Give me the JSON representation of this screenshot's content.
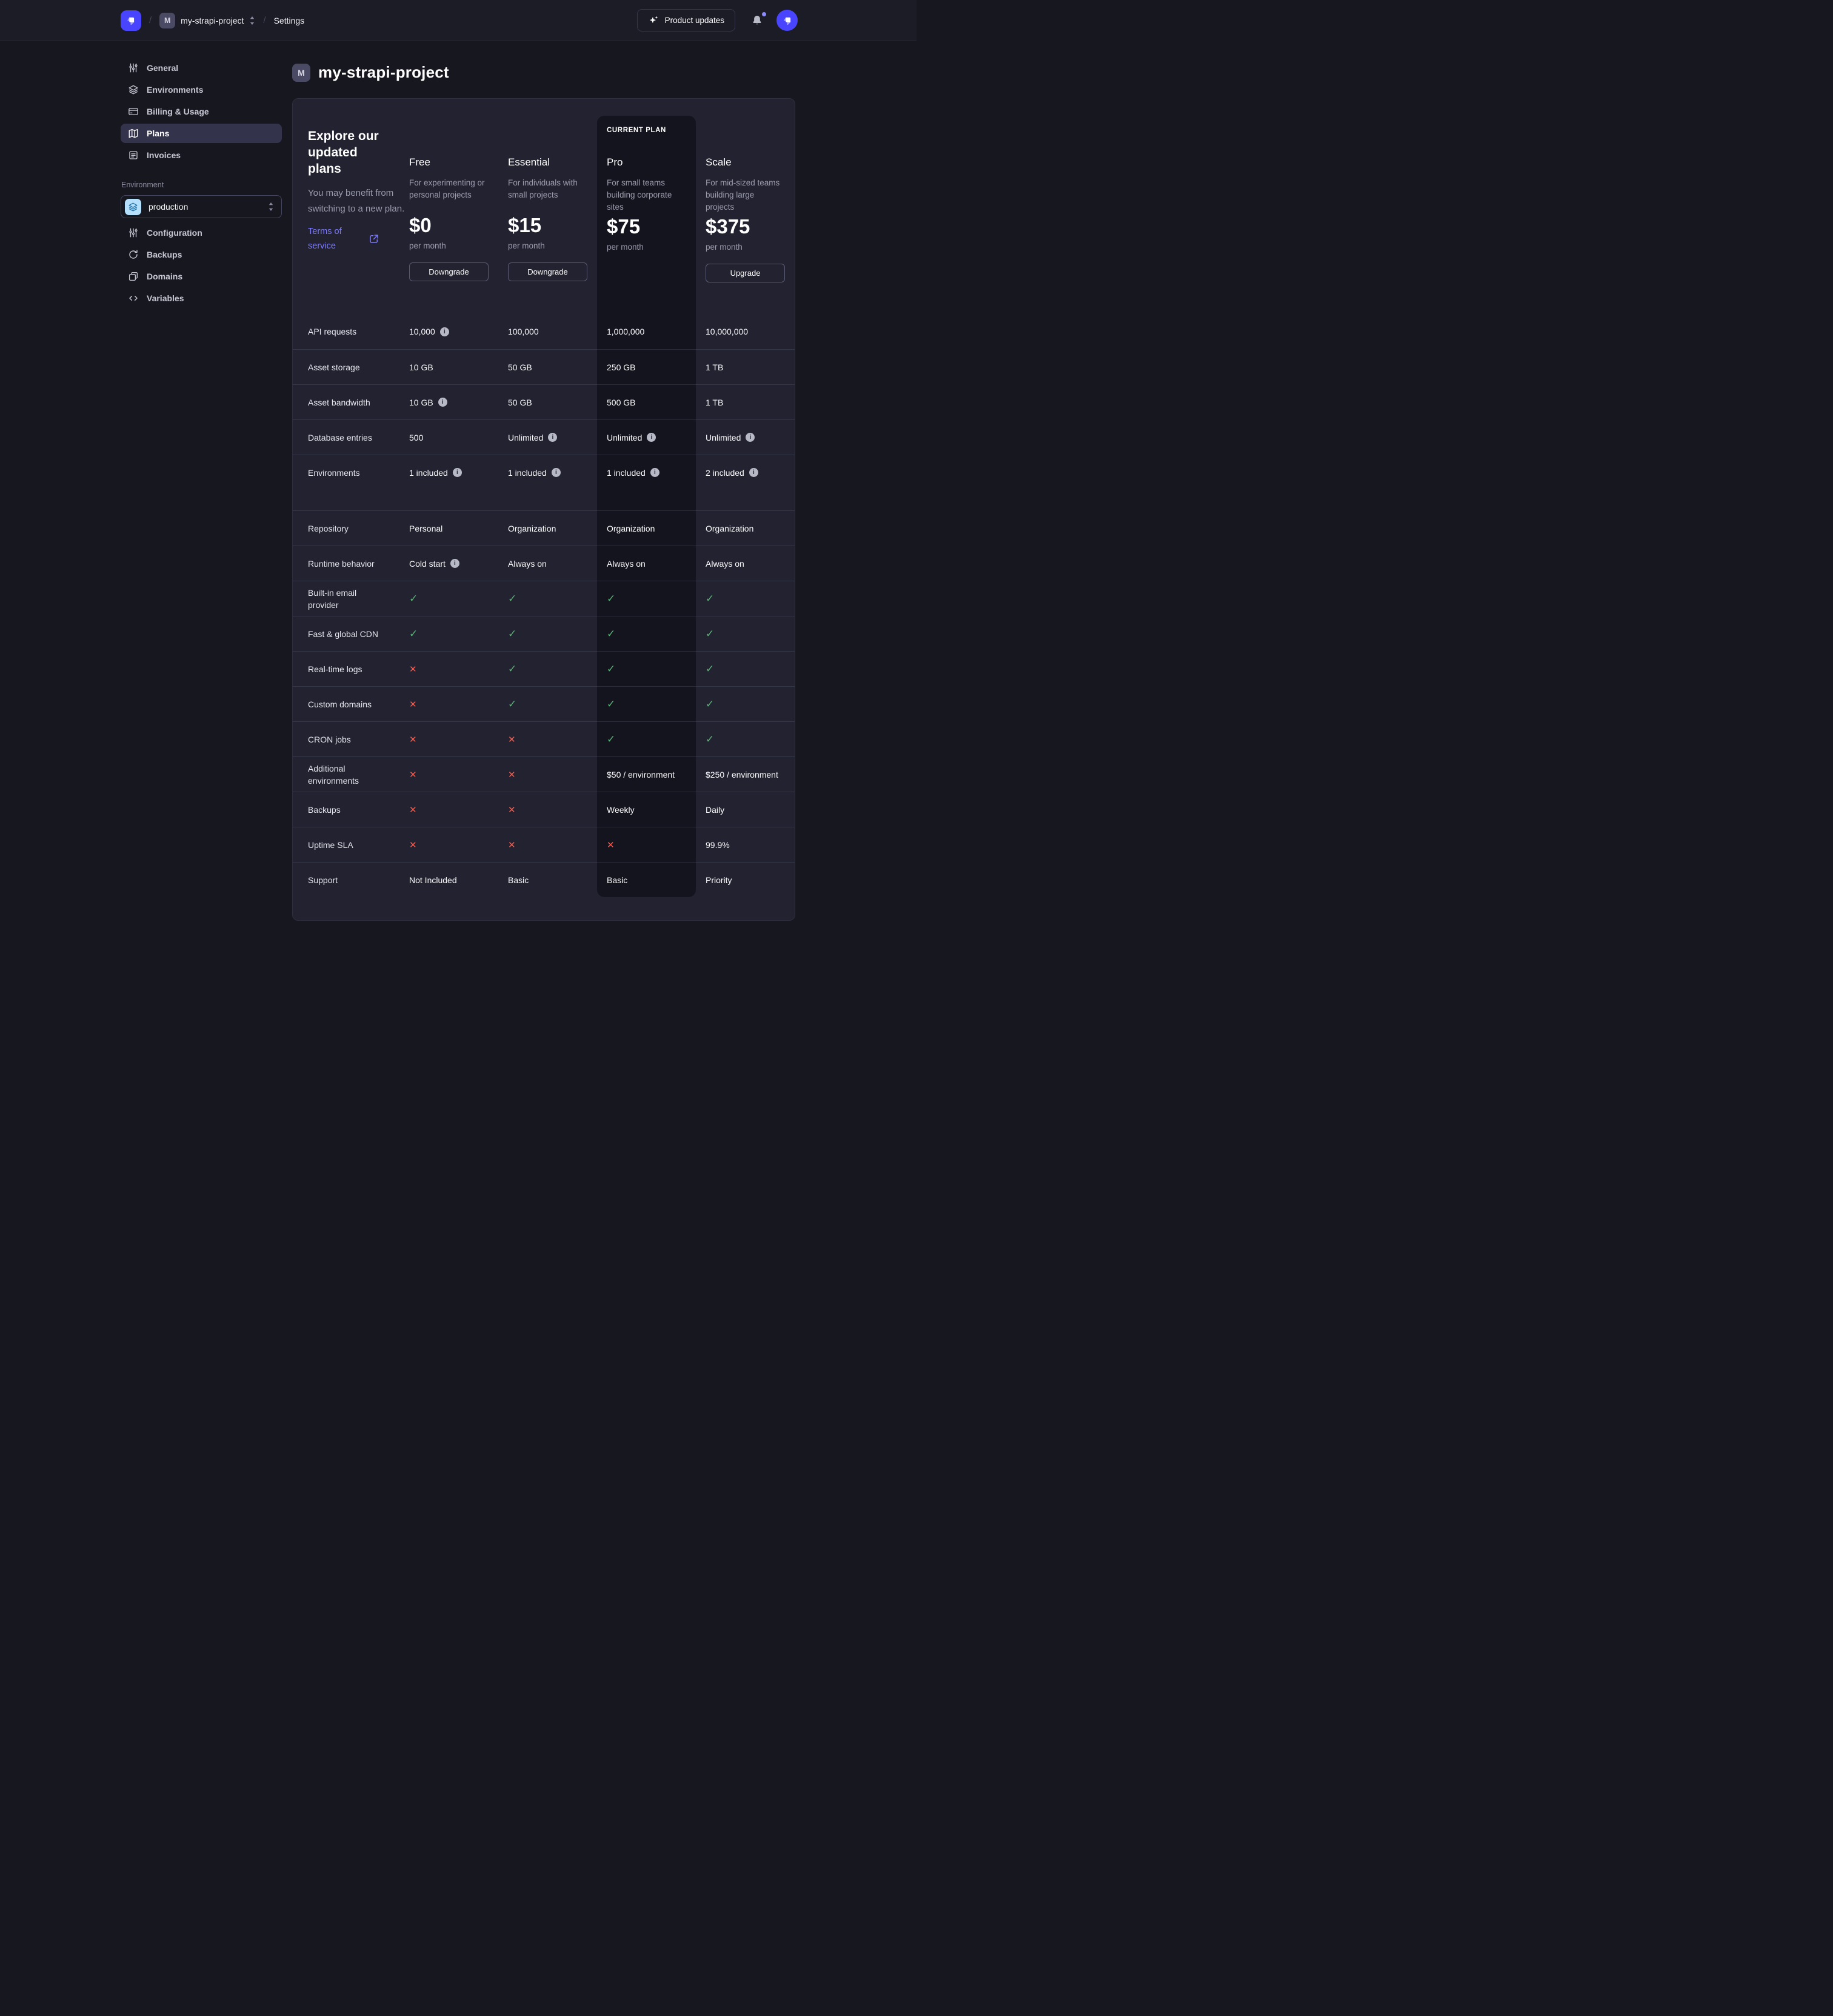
{
  "colors": {
    "accent": "#4945ff",
    "link": "#7b79ff",
    "success": "#5cb176",
    "danger": "#ee5e52",
    "current_plan_bg": "#14141e"
  },
  "topbar": {
    "separator": "/",
    "project_badge": "M",
    "project_name": "my-strapi-project",
    "settings_label": "Settings",
    "product_updates_label": "Product updates",
    "icons": [
      "strapi-logo",
      "sparkles-icon",
      "bell-icon",
      "avatar"
    ]
  },
  "sidebar": {
    "items": [
      {
        "label": "General",
        "icon": "sliders",
        "selected": false
      },
      {
        "label": "Environments",
        "icon": "layers",
        "selected": false
      },
      {
        "label": "Billing & Usage",
        "icon": "credit-card",
        "selected": false
      },
      {
        "label": "Plans",
        "icon": "map",
        "selected": true
      },
      {
        "label": "Invoices",
        "icon": "invoice",
        "selected": false
      }
    ],
    "environment_section": {
      "label": "Environment",
      "selected_value": "production",
      "items": [
        {
          "label": "Configuration",
          "icon": "sliders"
        },
        {
          "label": "Backups",
          "icon": "refresh"
        },
        {
          "label": "Domains",
          "icon": "copy"
        },
        {
          "label": "Variables",
          "icon": "code"
        }
      ]
    }
  },
  "page": {
    "title_badge": "M",
    "title": "my-strapi-project"
  },
  "plans_card": {
    "intro_title": "Explore our updated plans",
    "intro_body": "You may benefit from switching to a new plan.",
    "terms_link": "Terms of service",
    "current_plan_label": "CURRENT PLAN",
    "plans": [
      {
        "name": "Free",
        "description": "For experimenting or personal projects",
        "price": "$0",
        "period": "per month",
        "action": "Downgrade",
        "current": false
      },
      {
        "name": "Essential",
        "description": "For individuals with small projects",
        "price": "$15",
        "period": "per month",
        "action": "Downgrade",
        "current": false
      },
      {
        "name": "Pro",
        "description": "For small teams building corporate sites",
        "price": "$75",
        "period": "per month",
        "action": null,
        "current": true
      },
      {
        "name": "Scale",
        "description": "For mid-sized teams building large projects",
        "price": "$375",
        "period": "per month",
        "action": "Upgrade",
        "current": false
      }
    ],
    "features": [
      {
        "label": "API requests",
        "values": [
          {
            "text": "10,000",
            "info": true
          },
          {
            "text": "100,000"
          },
          {
            "text": "1,000,000"
          },
          {
            "text": "10,000,000"
          }
        ]
      },
      {
        "label": "Asset storage",
        "values": [
          {
            "text": "10 GB"
          },
          {
            "text": "50 GB"
          },
          {
            "text": "250 GB"
          },
          {
            "text": "1 TB"
          }
        ]
      },
      {
        "label": "Asset bandwidth",
        "values": [
          {
            "text": "10 GB",
            "info": true
          },
          {
            "text": "50 GB"
          },
          {
            "text": "500 GB"
          },
          {
            "text": "1 TB"
          }
        ]
      },
      {
        "label": "Database entries",
        "values": [
          {
            "text": "500"
          },
          {
            "text": "Unlimited",
            "info": true
          },
          {
            "text": "Unlimited",
            "info": true
          },
          {
            "text": "Unlimited",
            "info": true
          }
        ]
      },
      {
        "label": "Environments",
        "values": [
          {
            "text": "1 included",
            "info": true
          },
          {
            "text": "1 included",
            "info": true
          },
          {
            "text": "1 included",
            "info": true
          },
          {
            "text": "2 included",
            "info": true
          }
        ]
      },
      {
        "spacer": true
      },
      {
        "label": "Repository",
        "values": [
          {
            "text": "Personal"
          },
          {
            "text": "Organization"
          },
          {
            "text": "Organization"
          },
          {
            "text": "Organization"
          }
        ]
      },
      {
        "label": "Runtime behavior",
        "values": [
          {
            "text": "Cold start",
            "info": true
          },
          {
            "text": "Always on"
          },
          {
            "text": "Always on"
          },
          {
            "text": "Always on"
          }
        ]
      },
      {
        "label": "Built-in email provider",
        "values": [
          {
            "icon": "check"
          },
          {
            "icon": "check"
          },
          {
            "icon": "check"
          },
          {
            "icon": "check"
          }
        ]
      },
      {
        "label": "Fast & global CDN",
        "values": [
          {
            "icon": "check"
          },
          {
            "icon": "check"
          },
          {
            "icon": "check"
          },
          {
            "icon": "check"
          }
        ]
      },
      {
        "label": "Real-time logs",
        "values": [
          {
            "icon": "cross"
          },
          {
            "icon": "check"
          },
          {
            "icon": "check"
          },
          {
            "icon": "check"
          }
        ]
      },
      {
        "label": "Custom domains",
        "values": [
          {
            "icon": "cross"
          },
          {
            "icon": "check"
          },
          {
            "icon": "check"
          },
          {
            "icon": "check"
          }
        ]
      },
      {
        "label": "CRON jobs",
        "values": [
          {
            "icon": "cross"
          },
          {
            "icon": "cross"
          },
          {
            "icon": "check"
          },
          {
            "icon": "check"
          }
        ]
      },
      {
        "label": "Additional environments",
        "values": [
          {
            "icon": "cross"
          },
          {
            "icon": "cross"
          },
          {
            "text": "$50 / environment"
          },
          {
            "text": "$250 / environment"
          }
        ]
      },
      {
        "label": "Backups",
        "values": [
          {
            "icon": "cross"
          },
          {
            "icon": "cross"
          },
          {
            "text": "Weekly"
          },
          {
            "text": "Daily"
          }
        ]
      },
      {
        "label": "Uptime SLA",
        "values": [
          {
            "icon": "cross"
          },
          {
            "icon": "cross"
          },
          {
            "icon": "cross"
          },
          {
            "text": "99.9%"
          }
        ]
      },
      {
        "label": "Support",
        "values": [
          {
            "text": "Not Included"
          },
          {
            "text": "Basic"
          },
          {
            "text": "Basic"
          },
          {
            "text": "Priority"
          }
        ]
      }
    ]
  }
}
